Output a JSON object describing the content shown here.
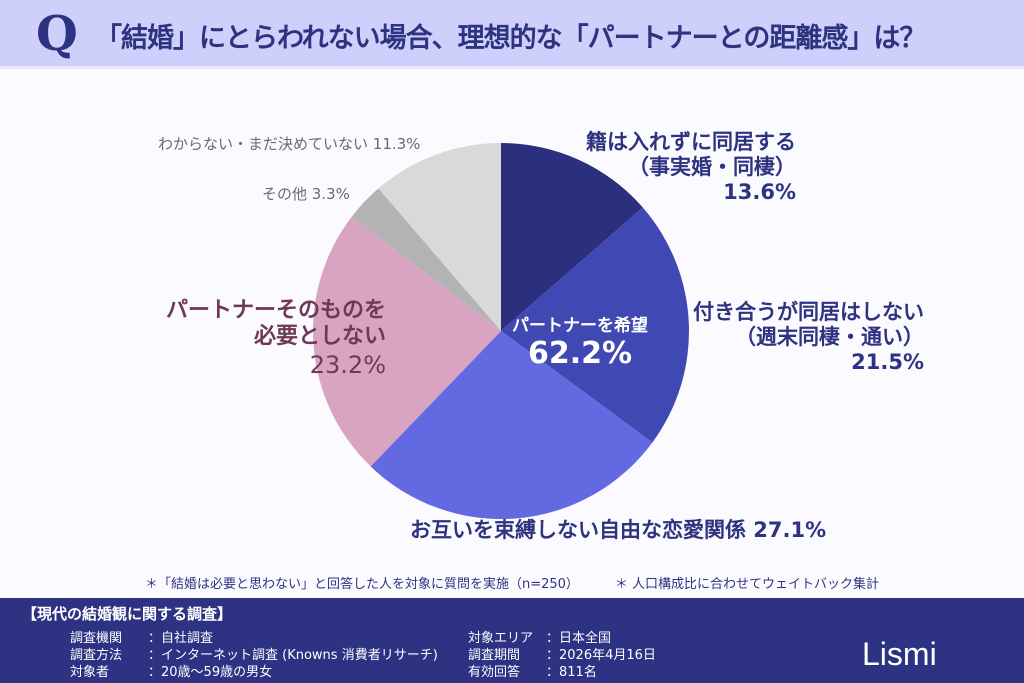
{
  "header": {
    "q": "Q",
    "title": "「結婚」にとらわれない場合、理想的な「パートナーとの距離感」は？"
  },
  "chart_data": {
    "type": "pie",
    "start": "top",
    "direction": "clockwise",
    "slices": [
      {
        "label": "籍は入れずに同居する（事実婚・同棲）",
        "lines": [
          "籍は入れずに同居する",
          "（事実婚・同棲）",
          "13.6%"
        ],
        "value": 13.6,
        "color": "#2b2f7e"
      },
      {
        "label": "付き合うが同居はしない（週末同棲・通い）",
        "lines": [
          "付き合うが同居はしない",
          "（週末同棲・通い）",
          "21.5%"
        ],
        "value": 21.5,
        "color": "#4049b3"
      },
      {
        "label": "お互いを束縛しない自由な恋愛関係",
        "lines": [
          "お互いを束縛しない自由な恋愛関係 27.1%"
        ],
        "value": 27.1,
        "color": "#6369e1"
      },
      {
        "label": "パートナーそのものを必要としない",
        "lines": [
          "パートナーそのものを",
          "必要としない",
          "23.2%"
        ],
        "value": 23.2,
        "color": "#d9a3c2"
      },
      {
        "label": "その他",
        "lines": [
          "その他 3.3%"
        ],
        "value": 3.3,
        "color": "#b3b3b3"
      },
      {
        "label": "わからない・まだ決めていない",
        "lines": [
          "わからない・まだ決めていない 11.3%"
        ],
        "value": 11.3,
        "color": "#d9d9d9"
      }
    ],
    "center_label": {
      "text": "パートナーを希望",
      "value": "62.2%"
    }
  },
  "notes": [
    "＊「結婚は必要と思わない」と回答した人を対象に質問を実施（n=250）",
    "＊ 人口構成比に合わせてウェイトバック集計"
  ],
  "footer": {
    "title": "【現代の結婚観に関する調査】",
    "left": [
      [
        "調査機関",
        "：自社調査"
      ],
      [
        "調査方法",
        "：インターネット調査 (Knowns 消費者リサーチ)"
      ],
      [
        "対象者",
        "：20歳～59歳の男女"
      ]
    ],
    "right": [
      [
        "対象エリア",
        "：日本全国"
      ],
      [
        "調査期間",
        "：2026年4月16日"
      ],
      [
        "有効回答",
        "：811名"
      ]
    ],
    "logo": "Lismi"
  }
}
